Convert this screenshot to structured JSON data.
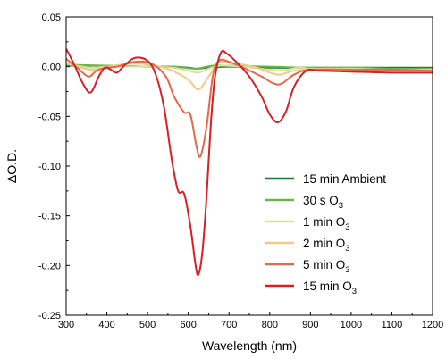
{
  "chart_data": {
    "type": "line",
    "title": "",
    "xlabel": "Wavelength (nm)",
    "ylabel": "ΔO.D.",
    "xlim": [
      300,
      1200
    ],
    "ylim": [
      -0.25,
      0.05
    ],
    "xticks": [
      "300",
      "400",
      "500",
      "600",
      "700",
      "800",
      "900",
      "1000",
      "1100",
      "1200"
    ],
    "yticks": [
      "0.05",
      "0.00",
      "-0.05",
      "-0.10",
      "-0.15",
      "-0.20",
      "-0.25"
    ],
    "legend_position": "bottom-right",
    "series": [
      {
        "name": "15 min Ambient",
        "legend_base": "15 min Ambient",
        "legend_sub": "",
        "color": "#1b7a30",
        "points": [
          [
            300,
            0.001
          ],
          [
            400,
            0.001
          ],
          [
            500,
            0.0
          ],
          [
            560,
            0.0
          ],
          [
            600,
            -0.001
          ],
          [
            620,
            -0.002
          ],
          [
            650,
            -0.001
          ],
          [
            700,
            0.0
          ],
          [
            800,
            -0.001
          ],
          [
            900,
            -0.001
          ],
          [
            1000,
            -0.001
          ],
          [
            1100,
            -0.001
          ],
          [
            1200,
            -0.001
          ]
        ]
      },
      {
        "name": "30 s O3",
        "legend_base": "30 s O",
        "legend_sub": "3",
        "color": "#6ab44a",
        "points": [
          [
            300,
            0.002
          ],
          [
            400,
            0.001
          ],
          [
            500,
            0.0
          ],
          [
            560,
            0.0
          ],
          [
            590,
            -0.001
          ],
          [
            620,
            -0.002
          ],
          [
            660,
            0.001
          ],
          [
            700,
            0.001
          ],
          [
            800,
            0.0
          ],
          [
            900,
            -0.001
          ],
          [
            1000,
            -0.001
          ],
          [
            1100,
            -0.002
          ],
          [
            1200,
            -0.002
          ]
        ]
      },
      {
        "name": "1 min O3",
        "legend_base": "1 min O",
        "legend_sub": "3",
        "color": "#d9e29c",
        "points": [
          [
            300,
            0.003
          ],
          [
            360,
            -0.001
          ],
          [
            400,
            0.0
          ],
          [
            500,
            0.0
          ],
          [
            560,
            -0.001
          ],
          [
            600,
            -0.004
          ],
          [
            625,
            -0.006
          ],
          [
            650,
            -0.002
          ],
          [
            680,
            0.001
          ],
          [
            730,
            0.0
          ],
          [
            800,
            -0.003
          ],
          [
            830,
            -0.004
          ],
          [
            870,
            -0.001
          ],
          [
            900,
            -0.002
          ],
          [
            1000,
            -0.002
          ],
          [
            1100,
            -0.003
          ],
          [
            1200,
            -0.003
          ]
        ]
      },
      {
        "name": "2 min O3",
        "legend_base": "2 min O",
        "legend_sub": "3",
        "color": "#f2c98a",
        "points": [
          [
            300,
            0.004
          ],
          [
            360,
            -0.003
          ],
          [
            400,
            0.0
          ],
          [
            460,
            0.003
          ],
          [
            520,
            0.001
          ],
          [
            560,
            -0.004
          ],
          [
            600,
            -0.013
          ],
          [
            625,
            -0.023
          ],
          [
            650,
            -0.01
          ],
          [
            675,
            0.004
          ],
          [
            700,
            0.004
          ],
          [
            760,
            0.0
          ],
          [
            800,
            -0.006
          ],
          [
            825,
            -0.008
          ],
          [
            860,
            -0.004
          ],
          [
            900,
            -0.003
          ],
          [
            1000,
            -0.003
          ],
          [
            1100,
            -0.004
          ],
          [
            1200,
            -0.004
          ]
        ]
      },
      {
        "name": "5 min O3",
        "legend_base": "5 min O",
        "legend_sub": "3",
        "color": "#e2694b",
        "points": [
          [
            300,
            0.008
          ],
          [
            330,
            -0.002
          ],
          [
            355,
            -0.01
          ],
          [
            375,
            -0.004
          ],
          [
            400,
            -0.001
          ],
          [
            425,
            0.0
          ],
          [
            470,
            0.005
          ],
          [
            510,
            0.003
          ],
          [
            545,
            -0.01
          ],
          [
            565,
            -0.03
          ],
          [
            590,
            -0.046
          ],
          [
            605,
            -0.048
          ],
          [
            620,
            -0.08
          ],
          [
            630,
            -0.09
          ],
          [
            645,
            -0.06
          ],
          [
            660,
            -0.01
          ],
          [
            675,
            0.006
          ],
          [
            700,
            0.005
          ],
          [
            740,
            -0.002
          ],
          [
            780,
            -0.01
          ],
          [
            810,
            -0.017
          ],
          [
            830,
            -0.017
          ],
          [
            860,
            -0.008
          ],
          [
            900,
            -0.003
          ],
          [
            1000,
            -0.003
          ],
          [
            1100,
            -0.003
          ],
          [
            1200,
            -0.004
          ]
        ]
      },
      {
        "name": "15 min O3",
        "legend_base": "15 min O",
        "legend_sub": "3",
        "color": "#d42027",
        "points": [
          [
            300,
            0.018
          ],
          [
            320,
            0.002
          ],
          [
            340,
            -0.016
          ],
          [
            360,
            -0.026
          ],
          [
            380,
            -0.01
          ],
          [
            395,
            -0.001
          ],
          [
            410,
            -0.003
          ],
          [
            425,
            -0.006
          ],
          [
            445,
            0.002
          ],
          [
            470,
            0.009
          ],
          [
            500,
            0.006
          ],
          [
            520,
            -0.008
          ],
          [
            540,
            -0.04
          ],
          [
            560,
            -0.095
          ],
          [
            575,
            -0.125
          ],
          [
            590,
            -0.128
          ],
          [
            605,
            -0.16
          ],
          [
            618,
            -0.2
          ],
          [
            625,
            -0.209
          ],
          [
            635,
            -0.185
          ],
          [
            645,
            -0.13
          ],
          [
            655,
            -0.06
          ],
          [
            665,
            -0.012
          ],
          [
            680,
            0.014
          ],
          [
            695,
            0.013
          ],
          [
            720,
            0.004
          ],
          [
            750,
            -0.01
          ],
          [
            780,
            -0.03
          ],
          [
            800,
            -0.048
          ],
          [
            820,
            -0.056
          ],
          [
            840,
            -0.045
          ],
          [
            860,
            -0.02
          ],
          [
            890,
            -0.004
          ],
          [
            920,
            -0.004
          ],
          [
            1000,
            -0.005
          ],
          [
            1100,
            -0.006
          ],
          [
            1200,
            -0.006
          ]
        ]
      }
    ]
  }
}
